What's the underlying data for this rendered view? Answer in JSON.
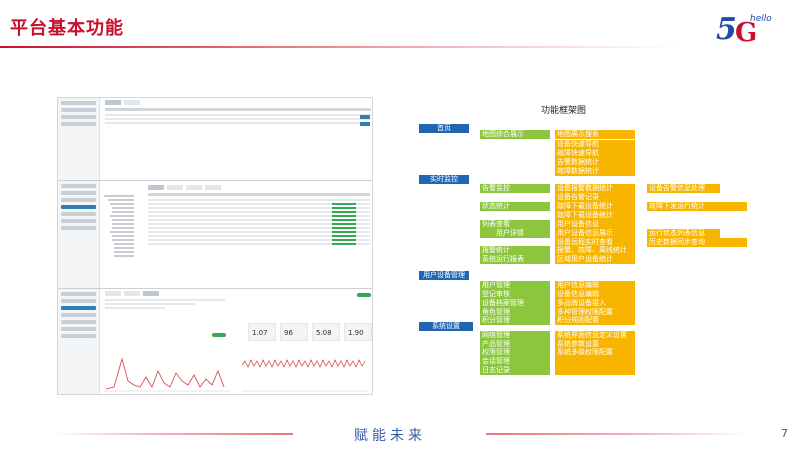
{
  "page": {
    "title": "平台基本功能",
    "footer_text": "赋能未来",
    "page_number": "7"
  },
  "logo": {
    "digit": "5",
    "letter": "G",
    "word": "hello"
  },
  "screenshot": {
    "kpis": [
      "1.07",
      "96",
      "5.08",
      "1.90"
    ]
  },
  "framework": {
    "title": "功能框架图",
    "sections": [
      {
        "label": "首页",
        "groups": [
          {
            "label": "地图综合展示",
            "items": [
              {
                "label": "地图展示搜索",
                "sub": ""
              },
              {
                "label": "设备快速导航",
                "sub": ""
              },
              {
                "label": "故障快速导航",
                "sub": ""
              },
              {
                "label": "告警数据统计",
                "sub": ""
              },
              {
                "label": "故障数据统计",
                "sub": ""
              }
            ]
          }
        ]
      },
      {
        "label": "实时监控",
        "groups": [
          {
            "label": "告警监控",
            "items": [
              {
                "label": "设备报警数据统计",
                "sub": "设备告警信息处理"
              },
              {
                "label": "设备告警记录",
                "sub": ""
              }
            ]
          },
          {
            "label": "状态统计",
            "items": [
              {
                "label": "故障下载设备统计",
                "sub": "故障下发运行统计"
              },
              {
                "label": "故障下载设备统计",
                "sub": ""
              }
            ]
          },
          {
            "label": "列表查看",
            "items": [
              {
                "label": "用户设备信息",
                "sub": ""
              }
            ]
          },
          {
            "label": "用户详情",
            "items": [
              {
                "label": "用户设备信息展示",
                "sub": "运行状态列表信息"
              },
              {
                "label": "设备远程实时查看",
                "sub": "历史数据同步查询"
              }
            ]
          },
          {
            "label": "报警统计",
            "items": [
              {
                "label": "报警、故障、离线统计",
                "sub": ""
              }
            ]
          },
          {
            "label": "系统运行报表",
            "items": [
              {
                "label": "区域用户设备统计",
                "sub": ""
              }
            ]
          }
        ]
      },
      {
        "label": "用户设备管理",
        "groups": [
          {
            "label": "用户管理",
            "items": [
              {
                "label": "用户信息编辑",
                "sub": ""
              }
            ]
          },
          {
            "label": "登记审核",
            "items": [
              {
                "label": "设备信息编辑",
                "sub": ""
              }
            ]
          },
          {
            "label": "设备档案管理",
            "items": [
              {
                "label": "多品牌设备接入",
                "sub": ""
              }
            ]
          },
          {
            "label": "角色管理",
            "items": [
              {
                "label": "多种管理权限配置",
                "sub": ""
              }
            ]
          },
          {
            "label": "积分管理",
            "items": [
              {
                "label": "积分规则配置",
                "sub": ""
              }
            ]
          }
        ]
      },
      {
        "label": "系统设置",
        "groups": [
          {
            "label": "网络管理",
            "items": [
              {
                "label": "系统界面信息定义设置",
                "sub": ""
              }
            ]
          },
          {
            "label": "产品管理",
            "items": [
              {
                "label": "系统参数设置",
                "sub": ""
              }
            ]
          },
          {
            "label": "权限管理",
            "items": [
              {
                "label": "系统多级权限配置",
                "sub": ""
              }
            ]
          },
          {
            "label": "会话管理",
            "items": [
              {
                "label": "",
                "sub": ""
              }
            ]
          },
          {
            "label": "日志记录",
            "items": [
              {
                "label": "",
                "sub": ""
              }
            ]
          }
        ]
      }
    ]
  },
  "colors": {
    "section": "#2166b3",
    "level1": "#8cc63f",
    "level2": "#f7b500",
    "brand_red": "#c8102e"
  }
}
